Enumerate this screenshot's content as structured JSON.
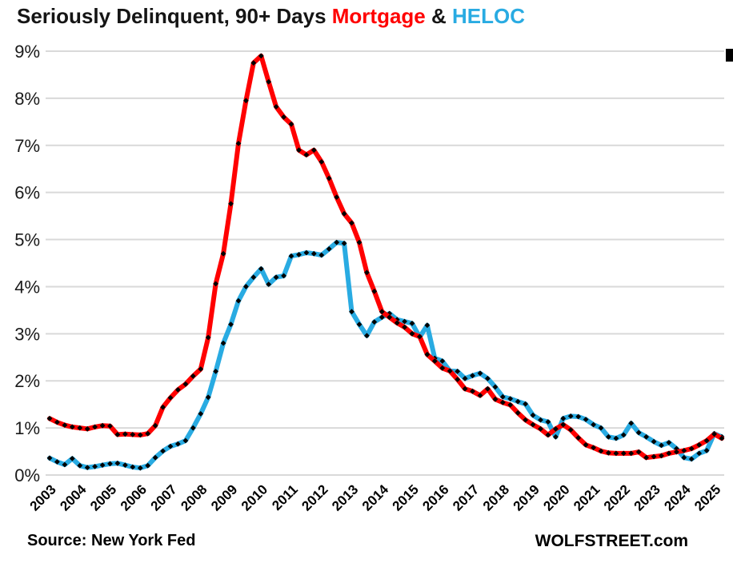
{
  "title": {
    "prefix": "Seriously Delinquent, 90+ Days ",
    "mortgage": "Mortgage",
    "separator": " & ",
    "heloc": "HELOC"
  },
  "source_note": "Source: New York Fed",
  "watermark": "WOLFSTREET.com",
  "colors": {
    "mortgage_red": "#ff0000",
    "heloc_blue": "#29abe2",
    "grid_gray": "#d9d9d9",
    "marker_black": "#000000",
    "text_black": "#1a1a1a"
  },
  "chart_data": {
    "type": "line",
    "title": "Seriously Delinquent, 90+ Days Mortgage & HELOC",
    "x_unit": "quarter",
    "x_range": [
      "2003Q1",
      "2025Q2"
    ],
    "year_labels": [
      "2003",
      "2004",
      "2005",
      "2006",
      "2007",
      "2008",
      "2009",
      "2010",
      "2011",
      "2012",
      "2013",
      "2014",
      "2015",
      "2016",
      "2017",
      "2018",
      "2019",
      "2020",
      "2021",
      "2022",
      "2023",
      "2024",
      "2025"
    ],
    "y_ticks": [
      "0%",
      "1%",
      "2%",
      "3%",
      "4%",
      "5%",
      "6%",
      "7%",
      "8%",
      "9%"
    ],
    "ylabel": "",
    "xlabel": "",
    "ylim": [
      0,
      9
    ],
    "grid": "horizontal",
    "legend_position": "inline-in-title",
    "marker": "black-diamond",
    "series": [
      {
        "name": "Mortgage",
        "color": "#ff0000",
        "values": [
          1.2,
          1.12,
          1.06,
          1.02,
          1.0,
          0.98,
          1.02,
          1.05,
          1.04,
          0.86,
          0.87,
          0.86,
          0.85,
          0.88,
          1.05,
          1.44,
          1.64,
          1.81,
          1.93,
          2.1,
          2.25,
          2.92,
          4.06,
          4.7,
          5.76,
          7.04,
          7.95,
          8.75,
          8.9,
          8.35,
          7.82,
          7.6,
          7.45,
          6.9,
          6.8,
          6.9,
          6.65,
          6.3,
          5.9,
          5.55,
          5.35,
          4.94,
          4.3,
          3.9,
          3.47,
          3.35,
          3.23,
          3.14,
          3.0,
          2.94,
          2.56,
          2.42,
          2.27,
          2.21,
          2.03,
          1.83,
          1.78,
          1.69,
          1.83,
          1.61,
          1.54,
          1.49,
          1.32,
          1.17,
          1.07,
          0.98,
          0.85,
          0.98,
          1.07,
          0.96,
          0.79,
          0.64,
          0.58,
          0.51,
          0.47,
          0.46,
          0.46,
          0.46,
          0.49,
          0.37,
          0.39,
          0.41,
          0.46,
          0.49,
          0.52,
          0.56,
          0.64,
          0.73,
          0.87,
          0.78
        ]
      },
      {
        "name": "HELOC",
        "color": "#29abe2",
        "values": [
          0.36,
          0.28,
          0.22,
          0.35,
          0.2,
          0.16,
          0.18,
          0.21,
          0.24,
          0.25,
          0.21,
          0.17,
          0.15,
          0.2,
          0.37,
          0.51,
          0.61,
          0.66,
          0.73,
          1.0,
          1.3,
          1.65,
          2.2,
          2.8,
          3.2,
          3.7,
          4.0,
          4.2,
          4.38,
          4.05,
          4.2,
          4.23,
          4.65,
          4.68,
          4.72,
          4.7,
          4.67,
          4.8,
          4.94,
          4.92,
          3.47,
          3.2,
          2.96,
          3.25,
          3.35,
          3.43,
          3.3,
          3.26,
          3.22,
          2.93,
          3.18,
          2.48,
          2.42,
          2.21,
          2.2,
          2.05,
          2.11,
          2.16,
          2.05,
          1.87,
          1.66,
          1.62,
          1.56,
          1.51,
          1.27,
          1.17,
          1.13,
          0.81,
          1.2,
          1.25,
          1.24,
          1.18,
          1.07,
          1.0,
          0.81,
          0.78,
          0.85,
          1.1,
          0.9,
          0.81,
          0.71,
          0.63,
          0.69,
          0.56,
          0.37,
          0.34,
          0.46,
          0.52,
          0.88,
          0.81
        ]
      }
    ]
  }
}
